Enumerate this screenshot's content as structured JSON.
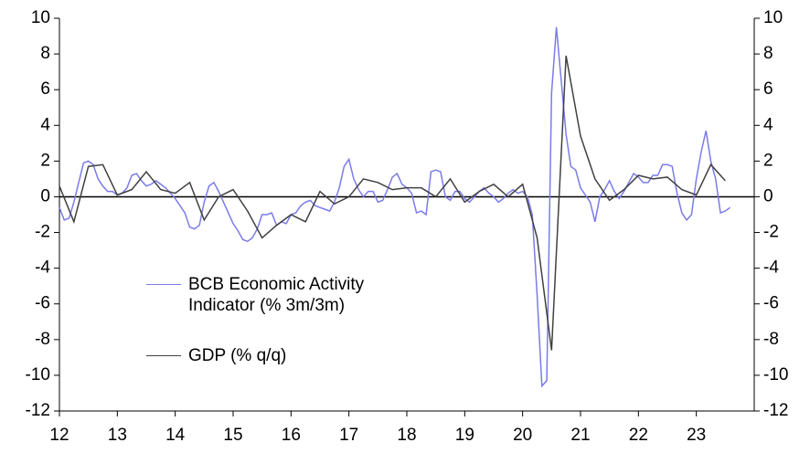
{
  "chart_data": {
    "type": "line",
    "xlim": [
      12,
      24
    ],
    "xticks": [
      12,
      13,
      14,
      15,
      16,
      17,
      18,
      19,
      20,
      21,
      22,
      23
    ],
    "ylim": [
      -12,
      10
    ],
    "yticks": [
      -12,
      -10,
      -8,
      -6,
      -4,
      -2,
      0,
      2,
      4,
      6,
      8,
      10
    ],
    "y2lim": [
      -12,
      10
    ],
    "y2ticks": [
      -12,
      -10,
      -8,
      -6,
      -4,
      -2,
      0,
      2,
      4,
      6,
      8,
      10
    ],
    "legend": "center-left",
    "series": [
      {
        "name": "BCB Economic Activity Indicator (% 3m/3m)",
        "color": "#7b7bea",
        "x": [
          12.0,
          12.083,
          12.167,
          12.25,
          12.333,
          12.417,
          12.5,
          12.583,
          12.667,
          12.75,
          12.833,
          12.917,
          13.0,
          13.083,
          13.167,
          13.25,
          13.333,
          13.417,
          13.5,
          13.583,
          13.667,
          13.75,
          13.833,
          13.917,
          14.0,
          14.083,
          14.167,
          14.25,
          14.333,
          14.417,
          14.5,
          14.583,
          14.667,
          14.75,
          14.833,
          14.917,
          15.0,
          15.083,
          15.167,
          15.25,
          15.333,
          15.417,
          15.5,
          15.583,
          15.667,
          15.75,
          15.833,
          15.917,
          16.0,
          16.083,
          16.167,
          16.25,
          16.333,
          16.417,
          16.5,
          16.583,
          16.667,
          16.75,
          16.833,
          16.917,
          17.0,
          17.083,
          17.167,
          17.25,
          17.333,
          17.417,
          17.5,
          17.583,
          17.667,
          17.75,
          17.833,
          17.917,
          18.0,
          18.083,
          18.167,
          18.25,
          18.333,
          18.417,
          18.5,
          18.583,
          18.667,
          18.75,
          18.833,
          18.917,
          19.0,
          19.083,
          19.167,
          19.25,
          19.333,
          19.417,
          19.5,
          19.583,
          19.667,
          19.75,
          19.833,
          19.917,
          20.0,
          20.083,
          20.167,
          20.25,
          20.333,
          20.417,
          20.5,
          20.583,
          20.667,
          20.75,
          20.833,
          20.917,
          21.0,
          21.083,
          21.167,
          21.25,
          21.333,
          21.417,
          21.5,
          21.583,
          21.667,
          21.75,
          21.833,
          21.917,
          22.0,
          22.083,
          22.167,
          22.25,
          22.333,
          22.417,
          22.5,
          22.583,
          22.667,
          22.75,
          22.833,
          22.917,
          23.0,
          23.083,
          23.167,
          23.25,
          23.333,
          23.417,
          23.5,
          23.583
        ],
        "values": [
          -0.6,
          -1.3,
          -1.2,
          -0.3,
          0.8,
          1.9,
          2.0,
          1.8,
          1.0,
          0.6,
          0.3,
          0.3,
          0.1,
          0.2,
          0.5,
          1.2,
          1.3,
          0.9,
          0.6,
          0.7,
          0.9,
          0.7,
          0.5,
          0.2,
          -0.1,
          -0.5,
          -0.9,
          -1.7,
          -1.8,
          -1.6,
          -0.3,
          0.6,
          0.8,
          0.3,
          -0.3,
          -0.9,
          -1.5,
          -1.9,
          -2.4,
          -2.5,
          -2.3,
          -1.8,
          -1.0,
          -1.0,
          -0.9,
          -1.6,
          -1.4,
          -1.5,
          -1.0,
          -0.9,
          -0.5,
          -0.3,
          -0.2,
          -0.5,
          -0.6,
          -0.7,
          -0.8,
          -0.3,
          0.5,
          1.7,
          2.1,
          1.0,
          0.4,
          0.0,
          0.3,
          0.3,
          -0.3,
          -0.2,
          0.4,
          1.1,
          1.3,
          0.7,
          0.5,
          0.2,
          -0.9,
          -0.8,
          -1.0,
          1.4,
          1.5,
          1.4,
          0.0,
          -0.2,
          0.3,
          0.3,
          -0.1,
          -0.3,
          0.0,
          0.3,
          0.5,
          0.2,
          0.0,
          -0.3,
          -0.1,
          0.2,
          0.4,
          0.2,
          0.3,
          0.0,
          -1.0,
          -5.5,
          -10.6,
          -10.3,
          5.8,
          9.5,
          6.5,
          3.5,
          1.7,
          1.5,
          0.5,
          0.1,
          -0.3,
          -1.4,
          0.0,
          0.4,
          0.9,
          0.3,
          -0.1,
          0.3,
          0.8,
          1.3,
          1.1,
          0.8,
          0.8,
          1.2,
          1.2,
          1.8,
          1.8,
          1.7,
          0.2,
          -0.9,
          -1.3,
          -1.0,
          1.0,
          2.5,
          3.7,
          2.0,
          1.0,
          -0.9,
          -0.8,
          -0.6
        ]
      },
      {
        "name": "GDP (% q/q)",
        "color": "#404040",
        "x": [
          12.0,
          12.25,
          12.5,
          12.75,
          13.0,
          13.25,
          13.5,
          13.75,
          14.0,
          14.25,
          14.5,
          14.75,
          15.0,
          15.25,
          15.5,
          15.75,
          16.0,
          16.25,
          16.5,
          16.75,
          17.0,
          17.25,
          17.5,
          17.75,
          18.0,
          18.25,
          18.5,
          18.75,
          19.0,
          19.25,
          19.5,
          19.75,
          20.0,
          20.25,
          20.5,
          20.75,
          21.0,
          21.25,
          21.5,
          21.75,
          22.0,
          22.25,
          22.5,
          22.75,
          23.0,
          23.25,
          23.5
        ],
        "values": [
          0.6,
          -1.4,
          1.7,
          1.8,
          0.1,
          0.4,
          1.4,
          0.4,
          0.2,
          0.8,
          -1.3,
          0.0,
          0.4,
          -0.8,
          -2.3,
          -1.6,
          -1.0,
          -1.4,
          0.3,
          -0.4,
          0.0,
          1.0,
          0.8,
          0.4,
          0.5,
          0.5,
          0.0,
          1.0,
          -0.3,
          0.3,
          0.7,
          0.0,
          0.7,
          -2.3,
          -8.6,
          7.9,
          3.4,
          1.0,
          -0.2,
          0.4,
          1.2,
          1.0,
          1.1,
          0.4,
          0.1,
          1.8,
          0.9
        ]
      }
    ]
  }
}
